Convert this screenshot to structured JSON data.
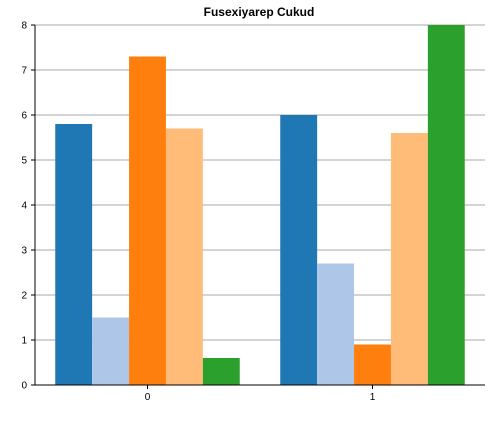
{
  "chart_data": {
    "type": "bar",
    "title": "Fusexiyarep Cukud",
    "xlabel": "",
    "ylabel": "",
    "categories": [
      "0",
      "1"
    ],
    "ylim": [
      0,
      8
    ],
    "yticks": [
      0,
      1,
      2,
      3,
      4,
      5,
      6,
      7,
      8
    ],
    "grid": "horizontal",
    "series": [
      {
        "values": [
          5.8,
          6.0
        ],
        "color": "#1f77b4"
      },
      {
        "values": [
          1.5,
          2.7
        ],
        "color": "#aec7e8"
      },
      {
        "values": [
          7.3,
          0.9
        ],
        "color": "#ff7f0e"
      },
      {
        "values": [
          5.7,
          5.6
        ],
        "color": "#ffbb78"
      },
      {
        "values": [
          0.6,
          8.0
        ],
        "color": "#2ca02c"
      }
    ]
  }
}
